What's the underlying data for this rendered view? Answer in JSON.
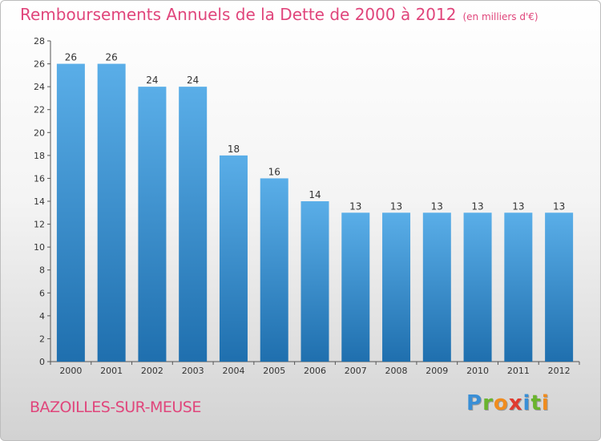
{
  "title": "Remboursements Annuels de la Dette de 2000 à 2012",
  "unit_note": "(en milliers d'€)",
  "commune": "BAZOILLES-SUR-MEUSE",
  "logo": {
    "text": "Proxiti",
    "letter_colors": [
      "#3a8fd6",
      "#6ab42d",
      "#f08c1e",
      "#e03a2f",
      "#3a8fd6",
      "#6ab42d",
      "#f08c1e"
    ]
  },
  "colors": {
    "bar_top": "#5aaee8",
    "bar_bottom": "#1f6fae",
    "title": "#e0457b"
  },
  "chart_data": {
    "type": "bar",
    "title": "Remboursements Annuels de la Dette de 2000 à 2012",
    "xlabel": "",
    "ylabel": "",
    "categories": [
      "2000",
      "2001",
      "2002",
      "2003",
      "2004",
      "2005",
      "2006",
      "2007",
      "2008",
      "2009",
      "2010",
      "2011",
      "2012"
    ],
    "values": [
      26,
      26,
      24,
      24,
      18,
      16,
      14,
      13,
      13,
      13,
      13,
      13,
      13
    ],
    "ylim": [
      0,
      28
    ],
    "yticks": [
      0,
      2,
      4,
      6,
      8,
      10,
      12,
      14,
      16,
      18,
      20,
      22,
      24,
      26,
      28
    ],
    "grid": false,
    "legend": "none"
  }
}
